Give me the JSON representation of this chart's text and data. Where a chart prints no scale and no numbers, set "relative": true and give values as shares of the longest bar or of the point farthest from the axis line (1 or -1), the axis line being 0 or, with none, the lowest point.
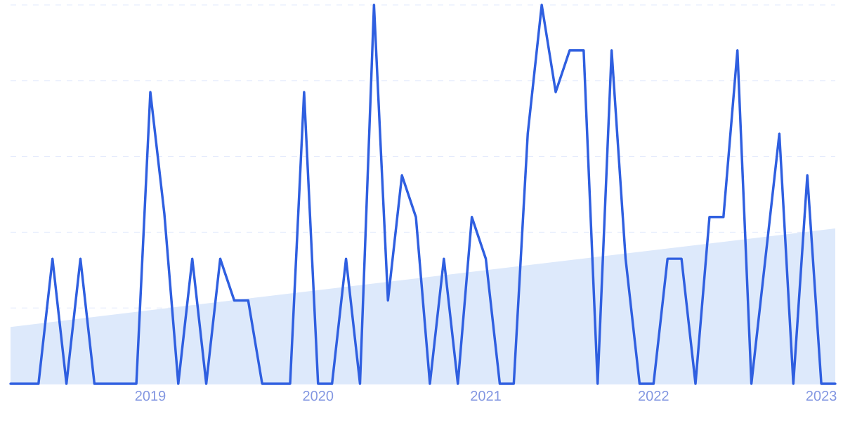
{
  "chart_data": {
    "type": "line",
    "relative": true,
    "grid": "y",
    "x": [
      "2018-03",
      "2018-04",
      "2018-05",
      "2018-06",
      "2018-07",
      "2018-08",
      "2018-09",
      "2018-10",
      "2018-11",
      "2018-12",
      "2019-01",
      "2019-02",
      "2019-03",
      "2019-04",
      "2019-05",
      "2019-06",
      "2019-07",
      "2019-08",
      "2019-09",
      "2019-10",
      "2019-11",
      "2019-12",
      "2020-01",
      "2020-02",
      "2020-03",
      "2020-04",
      "2020-05",
      "2020-06",
      "2020-07",
      "2020-08",
      "2020-09",
      "2020-10",
      "2020-11",
      "2020-12",
      "2021-01",
      "2021-02",
      "2021-03",
      "2021-04",
      "2021-05",
      "2021-06",
      "2021-07",
      "2021-08",
      "2021-09",
      "2021-10",
      "2021-11",
      "2021-12",
      "2022-01",
      "2022-02",
      "2022-03",
      "2022-04",
      "2022-05",
      "2022-06",
      "2022-07",
      "2022-08",
      "2022-09",
      "2022-10",
      "2022-11",
      "2022-12",
      "2023-01",
      "2023-02"
    ],
    "xlim": [
      "2018-03",
      "2023-02"
    ],
    "xticks": [
      {
        "value": "2019-01",
        "label": "2019"
      },
      {
        "value": "2020-01",
        "label": "2020"
      },
      {
        "value": "2021-01",
        "label": "2021"
      },
      {
        "value": "2022-01",
        "label": "2022"
      },
      {
        "value": "2023-01",
        "label": "2023"
      }
    ],
    "series": [
      {
        "type": "area",
        "color": "#dde9fb",
        "x": [
          "2018-03",
          "2023-02"
        ],
        "values": [
          0.15,
          0.41
        ]
      },
      {
        "color": "#2f5fe0",
        "values": [
          0,
          0,
          0,
          0.33,
          0,
          0.33,
          0,
          0,
          0,
          0,
          0.77,
          0.45,
          0,
          0.33,
          0,
          0.33,
          0.22,
          0.22,
          0,
          0,
          0,
          0.77,
          0,
          0,
          0.33,
          0,
          1,
          0.22,
          0.55,
          0.44,
          0,
          0.33,
          0,
          0.44,
          0.33,
          0,
          0,
          0.66,
          1,
          0.77,
          0.88,
          0.88,
          0,
          0.88,
          0.33,
          0,
          0,
          0.33,
          0.33,
          0,
          0.44,
          0.44,
          0.88,
          0,
          0.33,
          0.66,
          0,
          0.55,
          0,
          0
        ]
      }
    ]
  }
}
